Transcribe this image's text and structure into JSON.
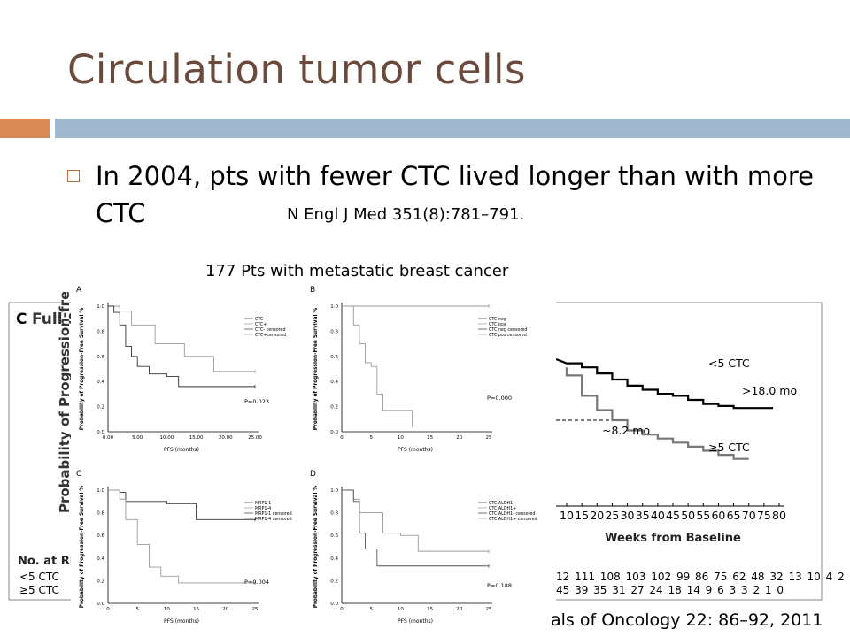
{
  "slide": {
    "title": "Circulation tumor cells",
    "bullet": "In 2004, pts with fewer CTC lived longer than with more CTC",
    "ref1": "N Engl J Med 351(8):781–791.",
    "subtitle": "177 Pts with metastatic breast cancer",
    "ref2": "als of Oncology 22: 86–92, 2011",
    "colors": {
      "title": "#6b4a3e",
      "accent_orange": "#d98a56",
      "accent_blue": "#9fb7cf"
    }
  },
  "chart_data": [
    {
      "type": "line",
      "panel_label": "C",
      "title": "Full Set",
      "ylabel": "Probability of Progression-free",
      "xlabel": "Weeks from Baseline",
      "x_ticks": [
        10,
        15,
        20,
        25,
        30,
        35,
        40,
        45,
        50,
        55,
        60,
        65,
        70,
        75,
        80
      ],
      "series": [
        {
          "name": "<5 CTC",
          "median_label": ">18.0 mo",
          "color": "#000000",
          "x": [
            10,
            15,
            20,
            25,
            30,
            35,
            40,
            45,
            50,
            55,
            60,
            65,
            70,
            75,
            78
          ],
          "y": [
            0.78,
            0.76,
            0.73,
            0.7,
            0.67,
            0.65,
            0.63,
            0.62,
            0.6,
            0.58,
            0.57,
            0.56,
            0.56,
            0.56,
            0.56
          ]
        },
        {
          "name": "≥5 CTC",
          "median_label": "~8.2 mo",
          "color": "#777777",
          "x": [
            10,
            15,
            20,
            25,
            30,
            35,
            40,
            45,
            50,
            55,
            60,
            65,
            70
          ],
          "y": [
            0.72,
            0.62,
            0.55,
            0.5,
            0.45,
            0.43,
            0.41,
            0.39,
            0.37,
            0.35,
            0.33,
            0.31,
            0.31
          ]
        }
      ],
      "at_risk": {
        "label": "No. at Ris",
        "rows": [
          {
            "name": "<5 CTC",
            "counts": "12 111 108 103 102 99 86 75 62 48 32 13 10 4 2"
          },
          {
            "name": "≥5 CTC",
            "counts": "45 39 35 31 27 24 18 14 9 6 3 3 2 1 0"
          }
        ]
      }
    },
    {
      "type": "line",
      "panel_label": "A",
      "xlabel": "PFS (months)",
      "ylabel": "Probability of Progression-Free Survival %",
      "ylim": [
        0,
        1
      ],
      "xlim": [
        0,
        25
      ],
      "p_value": "P=0.023",
      "legend": [
        "CTC-",
        "CTC+",
        "CTC- censored",
        "CTC+censored"
      ],
      "series": [
        {
          "color": "#999999",
          "x": [
            0,
            2,
            4,
            8,
            13,
            16,
            18,
            19,
            25
          ],
          "y": [
            1.0,
            0.96,
            0.85,
            0.7,
            0.6,
            0.6,
            0.48,
            0.48,
            0.48
          ]
        },
        {
          "color": "#333333",
          "x": [
            0,
            1,
            2,
            3,
            4,
            5,
            7,
            10,
            12,
            17,
            25
          ],
          "y": [
            1.0,
            0.95,
            0.85,
            0.68,
            0.6,
            0.52,
            0.46,
            0.44,
            0.36,
            0.36,
            0.36
          ]
        }
      ]
    },
    {
      "type": "line",
      "panel_label": "B",
      "xlabel": "PFS (months)",
      "ylabel": "Probability of Progression-Free Survival %",
      "ylim": [
        0,
        1
      ],
      "xlim": [
        0,
        25
      ],
      "p_value": "P=0.000",
      "legend": [
        "CTC neg",
        "CTC pos",
        "CTC neg censored",
        "CTC pos censored"
      ],
      "series": [
        {
          "color": "#999999",
          "x": [
            0,
            25
          ],
          "y": [
            1.0,
            1.0
          ]
        },
        {
          "color": "#999999",
          "x": [
            0,
            2,
            3,
            4,
            5,
            6,
            7,
            9,
            11,
            12
          ],
          "y": [
            1.0,
            0.85,
            0.7,
            0.55,
            0.52,
            0.3,
            0.17,
            0.17,
            0.17,
            0.05
          ]
        }
      ]
    },
    {
      "type": "line",
      "panel_label": "C",
      "xlabel": "PFS (months)",
      "ylabel": "Probability of Progression-Free Survival %",
      "ylim": [
        0,
        1
      ],
      "xlim": [
        0,
        25
      ],
      "p_value": "P=0.004",
      "legend": [
        "MRP1-1",
        "MRP1-4",
        "MRP1-1 censored",
        "MRP1-4 censored"
      ],
      "series": [
        {
          "color": "#333333",
          "x": [
            0,
            2,
            3,
            10,
            15,
            25
          ],
          "y": [
            1.0,
            0.98,
            0.9,
            0.88,
            0.74,
            0.74
          ]
        },
        {
          "color": "#999999",
          "x": [
            0,
            2,
            3,
            5,
            7,
            9,
            12,
            25
          ],
          "y": [
            1.0,
            0.92,
            0.74,
            0.52,
            0.32,
            0.24,
            0.18,
            0.18
          ]
        }
      ]
    },
    {
      "type": "line",
      "panel_label": "D",
      "xlabel": "PFS (months)",
      "ylabel": "Probability of Progression-Free Survival %",
      "ylim": [
        0,
        1
      ],
      "xlim": [
        0,
        25
      ],
      "p_value": "P=0.188",
      "legend": [
        "CTC ALDH1-",
        "CTC ALDH1+",
        "CTC ALDH1- censored",
        "CTC ALDH1+ censored"
      ],
      "series": [
        {
          "color": "#999999",
          "x": [
            0,
            2,
            3,
            7,
            10,
            13,
            25
          ],
          "y": [
            1.0,
            0.92,
            0.8,
            0.62,
            0.6,
            0.46,
            0.46
          ]
        },
        {
          "color": "#555555",
          "x": [
            0,
            2,
            3,
            4,
            6,
            25
          ],
          "y": [
            1.0,
            0.9,
            0.62,
            0.48,
            0.33,
            0.33
          ]
        }
      ]
    }
  ]
}
